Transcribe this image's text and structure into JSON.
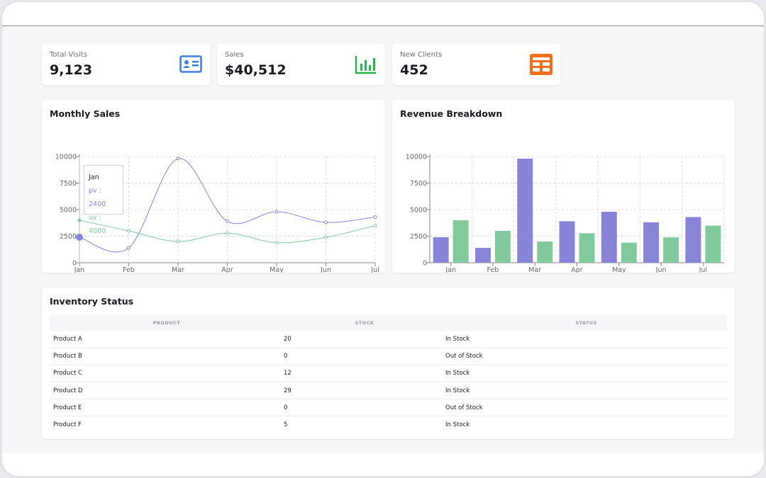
{
  "stats": [
    {
      "label": "Total Visits",
      "value": "9,123",
      "icon": "id-card-icon",
      "color": "#3b7de0"
    },
    {
      "label": "Sales",
      "value": "$40,512",
      "icon": "bar-chart-icon",
      "color": "#2eb04f"
    },
    {
      "label": "New Clients",
      "value": "452",
      "icon": "grid-table-icon",
      "color": "#f07019"
    }
  ],
  "monthly_sales": {
    "title": "Monthly Sales",
    "tooltip": {
      "title": "Jan",
      "pv": "pv : 2400",
      "uv": "uv : 4000"
    }
  },
  "revenue": {
    "title": "Revenue Breakdown"
  },
  "chart_data": [
    {
      "type": "line",
      "title": "Monthly Sales",
      "categories": [
        "Jan",
        "Feb",
        "Mar",
        "Apr",
        "May",
        "Jun",
        "Jul"
      ],
      "series": [
        {
          "name": "pv",
          "values": [
            2400,
            1398,
            9800,
            3908,
            4800,
            3800,
            4300
          ],
          "color": "#8884d8"
        },
        {
          "name": "uv",
          "values": [
            4000,
            3000,
            2000,
            2780,
            1890,
            2390,
            3490
          ],
          "color": "#82ca9d"
        }
      ],
      "yticks": [
        0,
        2500,
        5000,
        7500,
        10000
      ],
      "ylim": [
        0,
        10000
      ],
      "grid": true,
      "legend": "bottom-center"
    },
    {
      "type": "bar",
      "title": "Revenue Breakdown",
      "categories": [
        "Jan",
        "Feb",
        "Mar",
        "Apr",
        "May",
        "Jun",
        "Jul"
      ],
      "series": [
        {
          "name": "pv",
          "values": [
            2400,
            1398,
            9800,
            3908,
            4800,
            3800,
            4300
          ],
          "color": "#8884d8"
        },
        {
          "name": "uv",
          "values": [
            4000,
            3000,
            2000,
            2780,
            1890,
            2390,
            3490
          ],
          "color": "#82ca9d"
        }
      ],
      "yticks": [
        0,
        2500,
        5000,
        7500,
        10000
      ],
      "ylim": [
        0,
        10000
      ],
      "grid": true,
      "legend": "bottom-center"
    }
  ],
  "inventory": {
    "title": "Inventory Status",
    "columns": [
      "Product",
      "Stock",
      "Status"
    ],
    "rows": [
      [
        "Product A",
        "20",
        "In Stock"
      ],
      [
        "Product B",
        "0",
        "Out of Stock"
      ],
      [
        "Product C",
        "12",
        "In Stock"
      ],
      [
        "Product D",
        "29",
        "In Stock"
      ],
      [
        "Product E",
        "0",
        "Out of Stock"
      ],
      [
        "Product F",
        "5",
        "In Stock"
      ]
    ]
  }
}
